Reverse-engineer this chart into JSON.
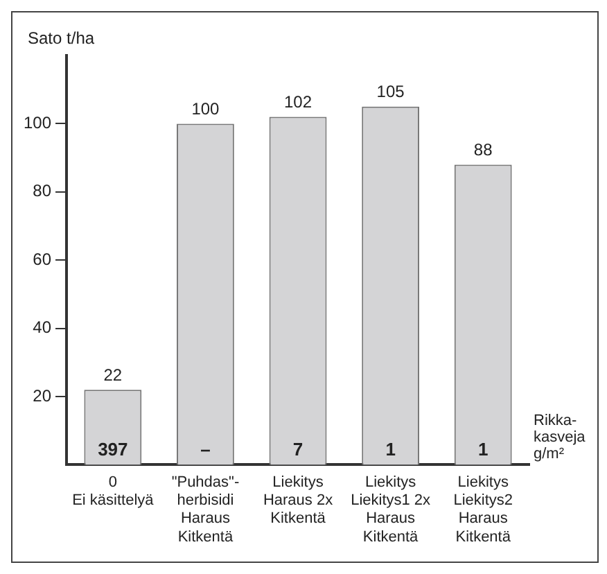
{
  "chart_data": {
    "type": "bar",
    "ylabel": "Sato t/ha",
    "categories": [
      "0\nEi käsittelyä",
      "\"Puhdas\"-\nherbisidi\nHaraus\nKitkentä",
      "Liekitys\nHaraus 2x\nKitkentä",
      "Liekitys\nLiekitys1 2x\nHaraus\nKitkentä",
      "Liekitys\nLiekitys2\nHaraus\nKitkentä"
    ],
    "values": [
      22,
      100,
      102,
      105,
      88
    ],
    "color": "#d4d4d6",
    "data_labels": true,
    "ylim": [
      0,
      120
    ],
    "yticks": [
      20,
      40,
      60,
      80,
      100
    ],
    "grid": false,
    "legend": false,
    "annotations": [
      "397",
      "–",
      "7",
      "1",
      "1",
      "Rikka-\nkasveja\ng/m²"
    ]
  }
}
